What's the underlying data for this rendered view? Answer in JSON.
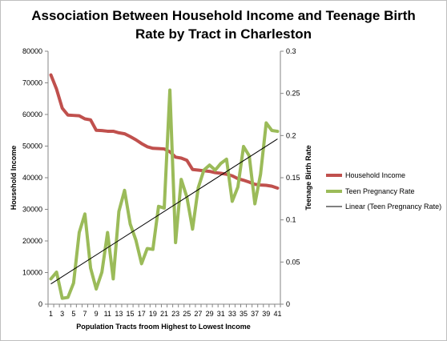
{
  "chart_data": {
    "type": "line",
    "title_lines": [
      "Association Between Household Income and Teenage Birth",
      "Rate by Tract in Charleston"
    ],
    "xlabel": "Population  Tracts froom Highest to Lowest Income",
    "ylabel_left": "Household  Income",
    "ylabel_right": "Teenage Birth Rate",
    "categories": [
      "1",
      "2",
      "3",
      "4",
      "5",
      "6",
      "7",
      "8",
      "9",
      "10",
      "11",
      "12",
      "13",
      "14",
      "15",
      "16",
      "17",
      "18",
      "19",
      "20",
      "21",
      "22",
      "23",
      "24",
      "25",
      "26",
      "27",
      "28",
      "29",
      "30",
      "31",
      "32",
      "33",
      "34",
      "35",
      "36",
      "37",
      "38",
      "39",
      "40",
      "41"
    ],
    "y_left": {
      "min": 0,
      "max": 80000,
      "ticks": [
        "0",
        "10000",
        "20000",
        "30000",
        "40000",
        "50000",
        "60000",
        "70000",
        "80000"
      ]
    },
    "y_right": {
      "min": 0,
      "max": 0.3,
      "ticks": [
        "0",
        "0.05",
        "0.1",
        "0.15",
        "0.2",
        "0.25",
        "0.3"
      ]
    },
    "series": [
      {
        "name": "Household Income",
        "axis": "left",
        "color": "#c0504d",
        "values": [
          72500,
          68000,
          62000,
          59800,
          59700,
          59600,
          58600,
          58300,
          55000,
          54900,
          54700,
          54700,
          54200,
          53900,
          53000,
          52000,
          50800,
          49800,
          49300,
          49200,
          49100,
          48200,
          46500,
          46200,
          45500,
          42600,
          42400,
          42200,
          42000,
          41600,
          41400,
          41100,
          40600,
          39700,
          39200,
          38600,
          37900,
          37700,
          37600,
          37300,
          36700
        ]
      },
      {
        "name": "Teen Pregnancy Rate",
        "axis": "right",
        "color": "#9bbb59",
        "values": [
          0.03,
          0.038,
          0.007,
          0.008,
          0.025,
          0.085,
          0.107,
          0.043,
          0.018,
          0.038,
          0.085,
          0.03,
          0.11,
          0.135,
          0.095,
          0.076,
          0.048,
          0.066,
          0.065,
          0.116,
          0.114,
          0.254,
          0.073,
          0.148,
          0.127,
          0.089,
          0.138,
          0.159,
          0.165,
          0.159,
          0.167,
          0.172,
          0.122,
          0.139,
          0.187,
          0.176,
          0.119,
          0.154,
          0.215,
          0.206,
          0.205
        ]
      },
      {
        "name": "Linear (Teen Pregnancy Rate)",
        "axis": "right",
        "color": "#000000",
        "trend": {
          "start": 0.024,
          "end": 0.196
        }
      }
    ],
    "legend_position": "right",
    "grid": false
  }
}
